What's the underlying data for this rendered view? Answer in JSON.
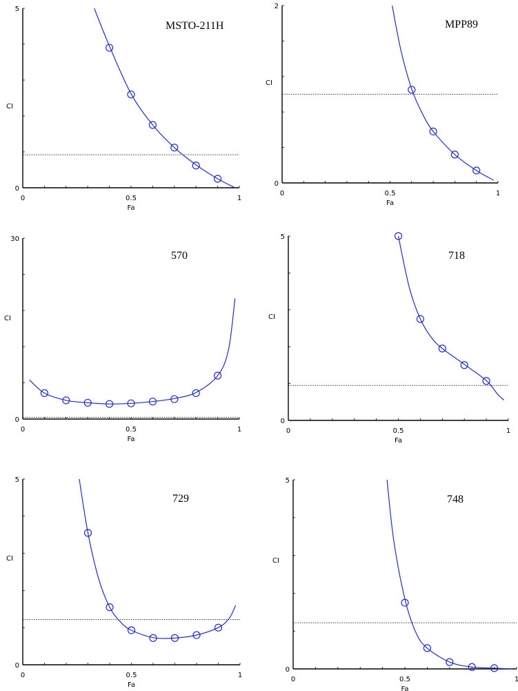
{
  "colors": {
    "curve": "#1f2bd6",
    "axis": "#000000",
    "reference_line": "#000000"
  },
  "chart_data": [
    {
      "type": "line",
      "title": "MSTO-211H",
      "xlabel": "Fa",
      "ylabel": "CI",
      "xlim": [
        0,
        1
      ],
      "ylim": [
        0,
        5
      ],
      "xticks": [
        "0",
        "0.5",
        "1"
      ],
      "yticks": [
        "0",
        "5"
      ],
      "reference_line": 0.92,
      "series": [
        {
          "kind": "points",
          "x": [
            0.4,
            0.5,
            0.6,
            0.7,
            0.8,
            0.9
          ],
          "y": [
            3.9,
            2.6,
            1.75,
            1.12,
            0.62,
            0.25
          ]
        },
        {
          "kind": "fit",
          "x": [
            0.33,
            0.4,
            0.5,
            0.6,
            0.7,
            0.8,
            0.9,
            0.98
          ],
          "y": [
            5.0,
            3.95,
            2.62,
            1.75,
            1.12,
            0.64,
            0.25,
            0.0
          ]
        }
      ]
    },
    {
      "type": "line",
      "title": "MPP89",
      "xlabel": "Fa",
      "ylabel": "CI",
      "xlim": [
        0,
        1
      ],
      "ylim": [
        0,
        2
      ],
      "xticks": [
        "0",
        "0.5",
        "1"
      ],
      "yticks": [
        "0",
        "2"
      ],
      "reference_line": 1.0,
      "series": [
        {
          "kind": "points",
          "x": [
            0.6,
            0.7,
            0.8,
            0.9
          ],
          "y": [
            1.05,
            0.58,
            0.32,
            0.14
          ]
        },
        {
          "kind": "fit",
          "x": [
            0.51,
            0.55,
            0.6,
            0.65,
            0.7,
            0.8,
            0.9,
            0.98
          ],
          "y": [
            2.0,
            1.5,
            1.06,
            0.78,
            0.58,
            0.32,
            0.14,
            0.03
          ]
        }
      ]
    },
    {
      "type": "line",
      "title": "570",
      "xlabel": "Fa",
      "ylabel": "CI",
      "xlim": [
        0,
        1
      ],
      "ylim": [
        0,
        30
      ],
      "xticks": [
        "0",
        "0.5",
        "1"
      ],
      "yticks": [
        "0",
        "30"
      ],
      "reference_line": 0.3,
      "series": [
        {
          "kind": "points",
          "x": [
            0.1,
            0.2,
            0.3,
            0.4,
            0.5,
            0.6,
            0.7,
            0.8,
            0.9
          ],
          "y": [
            4.3,
            3.1,
            2.7,
            2.5,
            2.6,
            2.9,
            3.3,
            4.3,
            7.2
          ]
        },
        {
          "kind": "fit",
          "x": [
            0.03,
            0.1,
            0.2,
            0.3,
            0.4,
            0.5,
            0.6,
            0.7,
            0.8,
            0.9,
            0.95,
            0.98
          ],
          "y": [
            6.5,
            4.3,
            3.1,
            2.7,
            2.5,
            2.6,
            2.9,
            3.4,
            4.4,
            7.2,
            11.5,
            20.0
          ]
        }
      ]
    },
    {
      "type": "line",
      "title": "718",
      "xlabel": "Fa",
      "ylabel": "CI",
      "xlim": [
        0,
        1
      ],
      "ylim": [
        0,
        5
      ],
      "xticks": [
        "0",
        "0.5",
        "1"
      ],
      "yticks": [
        "0",
        "5"
      ],
      "reference_line": 0.95,
      "series": [
        {
          "kind": "points",
          "x": [
            0.5,
            0.6,
            0.7,
            0.8,
            0.9
          ],
          "y": [
            5.0,
            2.75,
            1.95,
            1.5,
            1.07
          ]
        },
        {
          "kind": "fit",
          "x": [
            0.5,
            0.55,
            0.6,
            0.65,
            0.7,
            0.8,
            0.9,
            0.95,
            0.98
          ],
          "y": [
            5.0,
            3.6,
            2.75,
            2.25,
            1.95,
            1.52,
            1.08,
            0.72,
            0.55
          ]
        }
      ]
    },
    {
      "type": "line",
      "title": "729",
      "xlabel": "Fa",
      "ylabel": "CI",
      "xlim": [
        0,
        1
      ],
      "ylim": [
        0,
        5
      ],
      "xticks": [
        "0",
        "0.5",
        "1"
      ],
      "yticks": [
        "0",
        "5"
      ],
      "reference_line": 1.22,
      "series": [
        {
          "kind": "points",
          "x": [
            0.3,
            0.4,
            0.5,
            0.6,
            0.7,
            0.8,
            0.9
          ],
          "y": [
            3.55,
            1.55,
            0.93,
            0.72,
            0.72,
            0.8,
            1.0
          ]
        },
        {
          "kind": "fit",
          "x": [
            0.26,
            0.3,
            0.35,
            0.4,
            0.45,
            0.5,
            0.6,
            0.7,
            0.8,
            0.9,
            0.95,
            0.98
          ],
          "y": [
            5.0,
            3.55,
            2.3,
            1.55,
            1.15,
            0.93,
            0.73,
            0.72,
            0.8,
            1.0,
            1.25,
            1.6
          ]
        }
      ]
    },
    {
      "type": "line",
      "title": "748",
      "xlabel": "Fa",
      "ylabel": "CI",
      "xlim": [
        0,
        1
      ],
      "ylim": [
        0,
        5
      ],
      "xticks": [
        "0",
        "0.5",
        "1"
      ],
      "yticks": [
        "0",
        "5"
      ],
      "reference_line": 1.22,
      "series": [
        {
          "kind": "points",
          "x": [
            0.5,
            0.6,
            0.7,
            0.8,
            0.9
          ],
          "y": [
            1.75,
            0.55,
            0.18,
            0.05,
            0.02
          ]
        },
        {
          "kind": "fit",
          "x": [
            0.42,
            0.45,
            0.5,
            0.55,
            0.6,
            0.7,
            0.8,
            0.9,
            0.98
          ],
          "y": [
            5.0,
            3.4,
            1.85,
            0.95,
            0.55,
            0.18,
            0.05,
            0.02,
            0.0
          ]
        }
      ]
    }
  ]
}
